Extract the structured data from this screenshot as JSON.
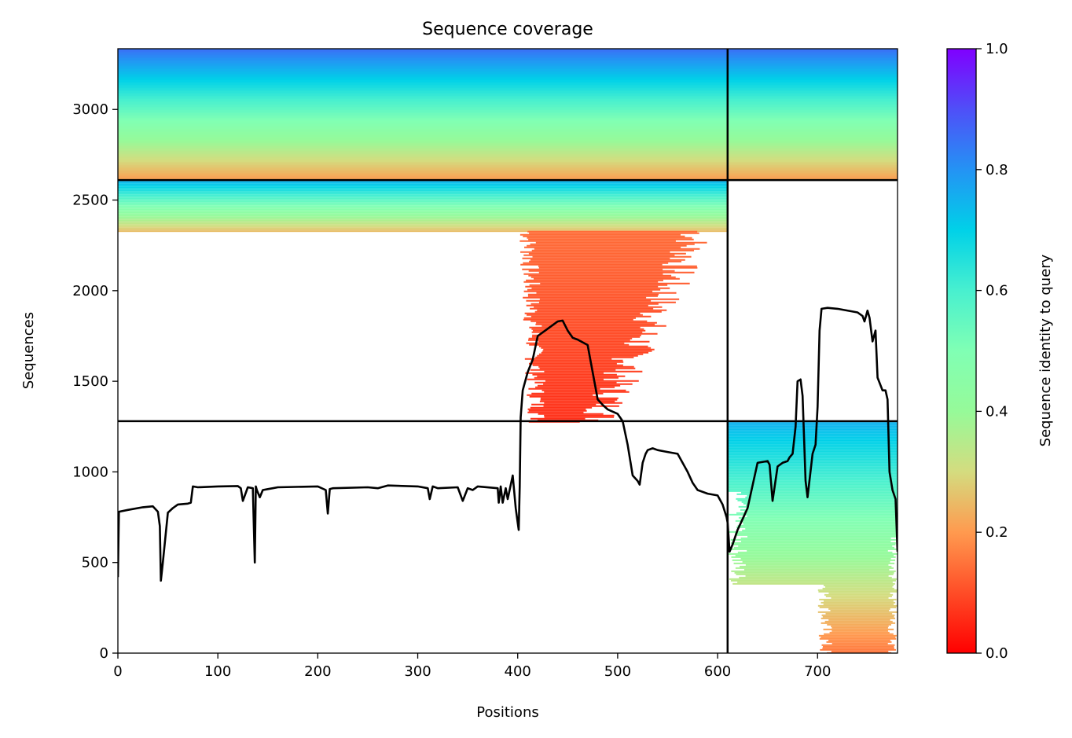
{
  "chart_data": {
    "type": "heatmap",
    "title": "Sequence coverage",
    "xlabel": "Positions",
    "ylabel": "Sequences",
    "colorbar_label": "Sequence identity to query",
    "xlim": [
      0,
      780
    ],
    "ylim": [
      0,
      3335
    ],
    "x_ticks": [
      0,
      100,
      200,
      300,
      400,
      500,
      600,
      700
    ],
    "y_ticks": [
      0,
      500,
      1000,
      1500,
      2000,
      2500,
      3000
    ],
    "colorbar_ticks": [
      "0.0",
      "0.2",
      "0.4",
      "0.6",
      "0.8",
      "1.0"
    ],
    "colorbar_range": [
      0,
      1
    ],
    "colormap": "rainbow (red = 0.0, orange, yellow-green, cyan, blue, violet = 1.0)",
    "grid": false,
    "segment_boundaries": {
      "vertical_x": [
        610
      ],
      "horizontal_y": [
        1280,
        2610
      ]
    },
    "coverage_blocks": [
      {
        "x_start": 0,
        "x_end": 610,
        "seq_start": 2610,
        "seq_end": 3335,
        "identity_top": 0.85,
        "identity_bottom": 0.2
      },
      {
        "x_start": 610,
        "x_end": 780,
        "seq_start": 2610,
        "seq_end": 3335,
        "identity_top": 0.85,
        "identity_bottom": 0.2
      },
      {
        "x_start": 0,
        "x_end": 610,
        "seq_start": 2330,
        "seq_end": 2610,
        "identity_top": 0.75,
        "identity_bottom": 0.25
      },
      {
        "x_start": 400,
        "x_end": 580,
        "seq_start": 1280,
        "seq_end": 2330,
        "identity_top": 0.14,
        "identity_bottom": 0.06
      },
      {
        "x_start": 610,
        "x_end": 780,
        "seq_start": 0,
        "seq_end": 1280,
        "identity_top": 0.75,
        "identity_bottom": 0.15
      }
    ],
    "series": [
      {
        "type": "line",
        "color": "#000000",
        "x": [
          0,
          1,
          10,
          25,
          35,
          40,
          42,
          43,
          45,
          50,
          55,
          60,
          70,
          73,
          75,
          80,
          100,
          120,
          123,
          125,
          130,
          135,
          137,
          138,
          139,
          142,
          145,
          150,
          155,
          160,
          200,
          208,
          210,
          212,
          215,
          250,
          260,
          270,
          300,
          310,
          312,
          315,
          320,
          340,
          345,
          350,
          355,
          360,
          380,
          381,
          383,
          385,
          388,
          390,
          395,
          398,
          400,
          401,
          402,
          403,
          405,
          410,
          415,
          420,
          430,
          440,
          445,
          450,
          455,
          460,
          470,
          475,
          480,
          485,
          490,
          500,
          505,
          510,
          515,
          520,
          522,
          525,
          528,
          530,
          535,
          540,
          550,
          560,
          570,
          575,
          580,
          590,
          600,
          605,
          609,
          610,
          612,
          615,
          620,
          625,
          630,
          640,
          650,
          652,
          655,
          660,
          665,
          670,
          672,
          675,
          678,
          680,
          683,
          685,
          688,
          690,
          695,
          698,
          700,
          702,
          704,
          710,
          720,
          740,
          745,
          747,
          750,
          752,
          755,
          758,
          760,
          765,
          768,
          770,
          772,
          775,
          778,
          780
        ],
        "y": [
          420,
          780,
          790,
          805,
          810,
          780,
          700,
          400,
          500,
          775,
          800,
          820,
          825,
          830,
          920,
          915,
          920,
          922,
          910,
          840,
          915,
          910,
          500,
          920,
          900,
          860,
          900,
          905,
          910,
          915,
          920,
          900,
          770,
          905,
          910,
          915,
          910,
          925,
          920,
          910,
          850,
          920,
          910,
          915,
          840,
          910,
          900,
          920,
          910,
          830,
          920,
          830,
          910,
          850,
          980,
          800,
          720,
          680,
          920,
          1300,
          1450,
          1550,
          1620,
          1750,
          1790,
          1830,
          1835,
          1780,
          1740,
          1730,
          1700,
          1550,
          1400,
          1370,
          1345,
          1320,
          1280,
          1150,
          980,
          950,
          930,
          1050,
          1100,
          1120,
          1130,
          1120,
          1110,
          1100,
          1000,
          940,
          900,
          880,
          870,
          820,
          750,
          720,
          560,
          600,
          680,
          740,
          800,
          1050,
          1060,
          1040,
          840,
          1030,
          1050,
          1060,
          1080,
          1100,
          1250,
          1500,
          1510,
          1420,
          950,
          860,
          1100,
          1150,
          1360,
          1780,
          1900,
          1905,
          1900,
          1880,
          1860,
          1830,
          1890,
          1850,
          1720,
          1780,
          1520,
          1450,
          1450,
          1400,
          1000,
          900,
          850,
          560
        ]
      }
    ]
  }
}
